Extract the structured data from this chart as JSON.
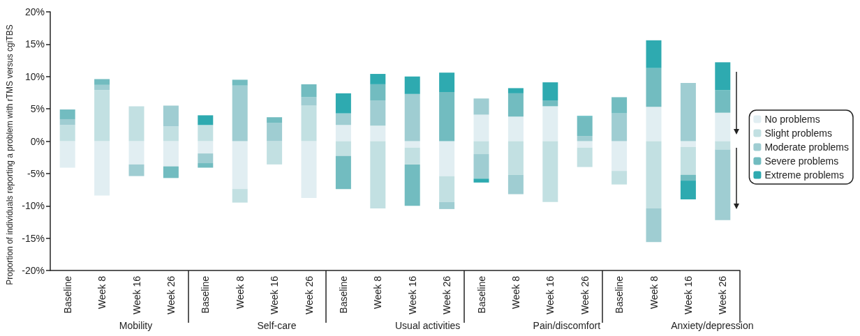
{
  "chart_data": {
    "type": "bar",
    "stacked": true,
    "ylabel": "Proportion of individuals reporting a problem with rTMS versus cgiTBS",
    "categories": [
      "Baseline",
      "Week 8",
      "Week 16",
      "Week 26",
      "Baseline",
      "Week 8",
      "Week 16",
      "Week 26",
      "Baseline",
      "Week 8",
      "Week 16",
      "Week 26",
      "Baseline",
      "Week 8",
      "Week 16",
      "Week 26",
      "Baseline",
      "Week 8",
      "Week 16",
      "Week 26"
    ],
    "annotations": [
      "Mobility",
      "Self-care",
      "Usual activities",
      "Pain/discomfort",
      "Anxiety/depression"
    ],
    "series": [
      {
        "name": "No problems",
        "color": "#e1eef2",
        "values": [
          -4.1,
          -8.4,
          -3.6,
          -3.9,
          -1.9,
          -7.4,
          null,
          -8.8,
          2.5,
          2.4,
          -1.0,
          -5.4,
          4.1,
          3.8,
          5.4,
          -1.0,
          -4.6,
          5.3,
          -0.9,
          4.4
        ]
      },
      {
        "name": "Slight problems",
        "color": "#c2e0e2",
        "values": [
          2.5,
          7.9,
          5.4,
          2.3,
          2.5,
          -2.1,
          -3.6,
          5.5,
          -2.3,
          -10.4,
          -2.6,
          -4.0,
          -2.0,
          -5.2,
          -9.4,
          -3.0,
          -2.1,
          -10.4,
          -4.3,
          -1.3
        ]
      },
      {
        "name": "Moderate problems",
        "color": "#9fcdd2",
        "values": [
          0.9,
          0.8,
          -1.8,
          3.2,
          -1.5,
          8.6,
          2.8,
          1.3,
          1.8,
          3.9,
          7.3,
          -1.1,
          2.5,
          -3.0,
          null,
          0.8,
          4.3,
          -5.2,
          9.0,
          -10.9
        ]
      },
      {
        "color": "#9fcdd2",
        "values": [
          null,
          null,
          null,
          null,
          null,
          null,
          null,
          null,
          null,
          null,
          null,
          null,
          -3.8,
          null,
          null,
          null,
          null,
          null,
          null,
          null
        ]
      },
      {
        "name": "Severe problems",
        "color": "#72bcc0",
        "values": [
          1.5,
          0.9,
          null,
          -1.8,
          -0.7,
          0.9,
          0.9,
          2.0,
          -5.1,
          2.5,
          -6.4,
          7.6,
          null,
          3.6,
          0.9,
          3.0,
          2.5,
          6.0,
          -0.9,
          3.5
        ]
      },
      {
        "name": "Extreme problems",
        "color": "#2eaab0",
        "values": [
          null,
          null,
          null,
          null,
          1.5,
          null,
          null,
          null,
          3.1,
          1.6,
          2.7,
          3.0,
          -0.6,
          0.8,
          2.8,
          0.1,
          null,
          4.3,
          -2.9,
          4.3
        ]
      }
    ],
    "ylim": [
      -20,
      20
    ],
    "yticks": [
      {
        "value": -20,
        "label": "-20%"
      },
      {
        "value": -15,
        "label": "-15%"
      },
      {
        "value": -10,
        "label": "-10%"
      },
      {
        "value": -5,
        "label": "-5%"
      },
      {
        "value": 0,
        "label": "0%"
      },
      {
        "value": 5,
        "label": "5%"
      },
      {
        "value": 10,
        "label": "10%"
      },
      {
        "value": 15,
        "label": "15%"
      },
      {
        "value": 20,
        "label": "20%"
      }
    ],
    "legend": "right",
    "grid": false
  }
}
